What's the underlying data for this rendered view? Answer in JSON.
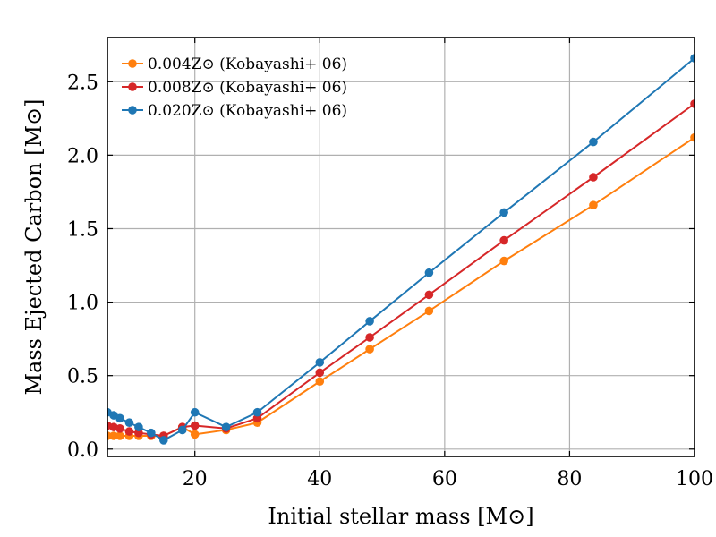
{
  "chart_data": {
    "type": "line",
    "xlabel": "Initial stellar mass [M⊙]",
    "ylabel": "Mass Ejected Carbon [M⊙]",
    "xlim": [
      6,
      100
    ],
    "ylim": [
      -0.05,
      2.8
    ],
    "xticks": [
      20,
      40,
      60,
      80,
      100
    ],
    "xtick_labels": [
      "20",
      "40",
      "60",
      "80",
      "100"
    ],
    "yticks": [
      0.0,
      0.5,
      1.0,
      1.5,
      2.0,
      2.5
    ],
    "ytick_labels": [
      "0.0",
      "0.5",
      "1.0",
      "1.5",
      "2.0",
      "2.5"
    ],
    "grid": true,
    "legend_position": "top-left",
    "series": [
      {
        "name": "0.004Z⊙ (Kobayashi+ 06)",
        "color": "#ff7f0e",
        "x": [
          6,
          7,
          8,
          9.5,
          11,
          13,
          15,
          18,
          20,
          25,
          30,
          40,
          48,
          57.5,
          69.5,
          83.8,
          100
        ],
        "y": [
          0.09,
          0.09,
          0.09,
          0.09,
          0.09,
          0.09,
          0.09,
          0.15,
          0.1,
          0.13,
          0.18,
          0.46,
          0.68,
          0.94,
          1.28,
          1.66,
          2.12
        ]
      },
      {
        "name": "0.008Z⊙ (Kobayashi+ 06)",
        "color": "#d62728",
        "x": [
          6,
          7,
          8,
          9.5,
          11,
          13,
          15,
          18,
          20,
          25,
          30,
          40,
          48,
          57.5,
          69.5,
          83.8,
          100
        ],
        "y": [
          0.16,
          0.15,
          0.14,
          0.12,
          0.11,
          0.1,
          0.09,
          0.15,
          0.16,
          0.14,
          0.21,
          0.52,
          0.76,
          1.05,
          1.42,
          1.85,
          2.35
        ]
      },
      {
        "name": "0.020Z⊙ (Kobayashi+ 06)",
        "color": "#1f77b4",
        "x": [
          6,
          7,
          8,
          9.5,
          11,
          13,
          15,
          18,
          20,
          25,
          30,
          40,
          48,
          57.5,
          69.5,
          83.8,
          100
        ],
        "y": [
          0.25,
          0.23,
          0.21,
          0.18,
          0.15,
          0.11,
          0.06,
          0.13,
          0.25,
          0.15,
          0.25,
          0.59,
          0.87,
          1.2,
          1.61,
          2.09,
          2.66
        ]
      }
    ]
  }
}
